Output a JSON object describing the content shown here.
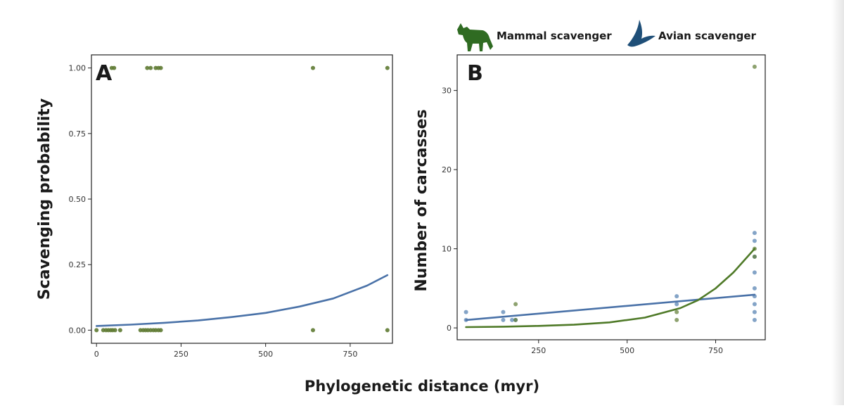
{
  "figure": {
    "xlabel": "Phylogenetic distance (myr)"
  },
  "legend": {
    "mammal_label": "Mammal scavenger",
    "avian_label": "Avian scavenger",
    "mammal_icon": "fox-silhouette-icon",
    "avian_icon": "bird-silhouette-icon"
  },
  "colors": {
    "mammal": "#4f7a28",
    "mammal_point": "#5e7a32",
    "mammal_icon": "#2f6b22",
    "avian": "#4a72a8",
    "avian_point": "#5b86b4",
    "avian_icon": "#1f4f78"
  },
  "chart_data": [
    {
      "panel": "A",
      "type": "scatter",
      "ylabel": "Scavenging probability",
      "xlim": [
        -15,
        875
      ],
      "ylim": [
        -0.05,
        1.05
      ],
      "xticks": [
        0,
        250,
        500,
        750
      ],
      "yticks": [
        0.0,
        0.25,
        0.5,
        0.75,
        1.0
      ],
      "ytick_labels": [
        "0.00",
        "0.25",
        "0.50",
        "0.75",
        "1.00"
      ],
      "grid": false,
      "points": [
        {
          "x": 0,
          "y": 0
        },
        {
          "x": 20,
          "y": 0
        },
        {
          "x": 28,
          "y": 0
        },
        {
          "x": 35,
          "y": 0
        },
        {
          "x": 42,
          "y": 0
        },
        {
          "x": 48,
          "y": 0
        },
        {
          "x": 55,
          "y": 0
        },
        {
          "x": 70,
          "y": 0
        },
        {
          "x": 130,
          "y": 0
        },
        {
          "x": 138,
          "y": 0
        },
        {
          "x": 145,
          "y": 0
        },
        {
          "x": 152,
          "y": 0
        },
        {
          "x": 160,
          "y": 0
        },
        {
          "x": 168,
          "y": 0
        },
        {
          "x": 175,
          "y": 0
        },
        {
          "x": 183,
          "y": 0
        },
        {
          "x": 190,
          "y": 0
        },
        {
          "x": 640,
          "y": 0
        },
        {
          "x": 860,
          "y": 0
        },
        {
          "x": 45,
          "y": 1
        },
        {
          "x": 52,
          "y": 1
        },
        {
          "x": 150,
          "y": 1
        },
        {
          "x": 160,
          "y": 1
        },
        {
          "x": 175,
          "y": 1
        },
        {
          "x": 183,
          "y": 1
        },
        {
          "x": 190,
          "y": 1
        },
        {
          "x": 640,
          "y": 1
        },
        {
          "x": 860,
          "y": 1
        }
      ],
      "series": [
        {
          "group": "avian",
          "type": "line",
          "x": [
            0,
            100,
            200,
            300,
            400,
            500,
            600,
            700,
            800,
            860
          ],
          "y": [
            0.016,
            0.021,
            0.028,
            0.037,
            0.05,
            0.066,
            0.09,
            0.121,
            0.17,
            0.21
          ]
        }
      ]
    },
    {
      "panel": "B",
      "type": "scatter",
      "ylabel": "Number of carcasses",
      "xlim": [
        20,
        890
      ],
      "ylim": [
        -1.5,
        34.5
      ],
      "xticks": [
        250,
        500,
        750
      ],
      "yticks": [
        0,
        10,
        20,
        30
      ],
      "grid": false,
      "points": [
        {
          "group": "avian",
          "x": 45,
          "y": 2
        },
        {
          "group": "avian",
          "x": 45,
          "y": 1
        },
        {
          "group": "avian",
          "x": 150,
          "y": 2
        },
        {
          "group": "avian",
          "x": 150,
          "y": 1
        },
        {
          "group": "avian",
          "x": 175,
          "y": 1
        },
        {
          "group": "avian",
          "x": 185,
          "y": 1
        },
        {
          "group": "avian",
          "x": 640,
          "y": 4
        },
        {
          "group": "avian",
          "x": 640,
          "y": 3
        },
        {
          "group": "avian",
          "x": 860,
          "y": 12
        },
        {
          "group": "avian",
          "x": 860,
          "y": 11
        },
        {
          "group": "avian",
          "x": 860,
          "y": 9
        },
        {
          "group": "avian",
          "x": 860,
          "y": 7
        },
        {
          "group": "avian",
          "x": 860,
          "y": 5
        },
        {
          "group": "avian",
          "x": 860,
          "y": 4
        },
        {
          "group": "avian",
          "x": 860,
          "y": 3
        },
        {
          "group": "avian",
          "x": 860,
          "y": 2
        },
        {
          "group": "avian",
          "x": 860,
          "y": 1
        },
        {
          "group": "mammal",
          "x": 185,
          "y": 3
        },
        {
          "group": "mammal",
          "x": 185,
          "y": 1
        },
        {
          "group": "mammal",
          "x": 640,
          "y": 2
        },
        {
          "group": "mammal",
          "x": 640,
          "y": 1
        },
        {
          "group": "mammal",
          "x": 860,
          "y": 33
        },
        {
          "group": "mammal",
          "x": 860,
          "y": 10
        },
        {
          "group": "mammal",
          "x": 860,
          "y": 9
        }
      ],
      "series": [
        {
          "group": "avian",
          "type": "line",
          "x": [
            45,
            860
          ],
          "y": [
            1.0,
            4.2
          ]
        },
        {
          "group": "mammal",
          "type": "line",
          "x": [
            45,
            150,
            250,
            350,
            450,
            550,
            650,
            700,
            750,
            800,
            860
          ],
          "y": [
            0.1,
            0.15,
            0.25,
            0.4,
            0.7,
            1.3,
            2.5,
            3.5,
            5.0,
            7.0,
            10.0
          ]
        }
      ]
    }
  ]
}
